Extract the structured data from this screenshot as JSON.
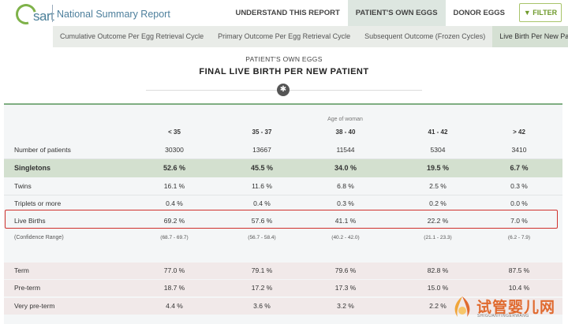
{
  "header": {
    "logo_text": "sart",
    "app_title": "National Summary Report",
    "nav": [
      {
        "label": "UNDERSTAND THIS REPORT",
        "active": false
      },
      {
        "label": "PATIENT'S OWN EGGS",
        "active": true
      },
      {
        "label": "DONOR EGGS",
        "active": false
      }
    ],
    "filter_label": "FILTER",
    "filter_icon": "funnel-icon",
    "accent_color": "#7fae82"
  },
  "subnav": [
    {
      "label": "Cumulative Outcome Per Egg Retrieval Cycle",
      "active": false
    },
    {
      "label": "Primary Outcome Per Egg Retrieval Cycle",
      "active": false
    },
    {
      "label": "Subsequent Outcome (Frozen Cycles)",
      "active": false
    },
    {
      "label": "Live Birth Per New Patient",
      "active": true
    }
  ],
  "hero": {
    "kicker": "PATIENT'S OWN EGGS",
    "title": "FINAL LIVE BIRTH PER NEW PATIENT",
    "badge_icon": "asterisk-icon"
  },
  "table": {
    "group_header": "Age of woman",
    "columns": [
      "< 35",
      "35 - 37",
      "38 - 40",
      "41 - 42",
      "> 42"
    ],
    "rows": [
      {
        "label": "Number of patients",
        "values": [
          "30300",
          "13667",
          "11544",
          "5304",
          "3410"
        ],
        "style": "plain"
      },
      {
        "label": "Singletons",
        "values": [
          "52.6 %",
          "45.5 %",
          "34.0 %",
          "19.5 %",
          "6.7 %"
        ],
        "style": "highlight-bold"
      },
      {
        "label": "Twins",
        "values": [
          "16.1 %",
          "11.6 %",
          "6.8 %",
          "2.5 %",
          "0.3 %"
        ],
        "style": "plain"
      },
      {
        "label": "Triplets or more",
        "values": [
          "0.4 %",
          "0.4 %",
          "0.3 %",
          "0.2 %",
          "0.0 %"
        ],
        "style": "plain"
      },
      {
        "label": "Live Births",
        "values": [
          "69.2 %",
          "57.6 %",
          "41.1 %",
          "22.2 %",
          "7.0 %"
        ],
        "style": "plain"
      },
      {
        "label": "(Confidence Range)",
        "values": [
          "(68.7 - 69.7)",
          "(56.7 - 58.4)",
          "(40.2 - 42.0)",
          "(21.1 - 23.3)",
          "(6.2 - 7.9)"
        ],
        "style": "small"
      },
      {
        "label": "Term",
        "values": [
          "77.0 %",
          "79.1 %",
          "79.6 %",
          "82.8 %",
          "87.5 %"
        ],
        "style": "shade"
      },
      {
        "label": "Pre-term",
        "values": [
          "18.7 %",
          "17.2 %",
          "17.3 %",
          "15.0 %",
          "10.4 %"
        ],
        "style": "shade"
      },
      {
        "label": "Very pre-term",
        "values": [
          "4.4 %",
          "3.6 %",
          "3.2 %",
          "2.2 %",
          ""
        ],
        "style": "shade"
      }
    ]
  },
  "watermark": {
    "text": "试管婴儿网",
    "sub": "SHIGUANYINGERWANG"
  }
}
